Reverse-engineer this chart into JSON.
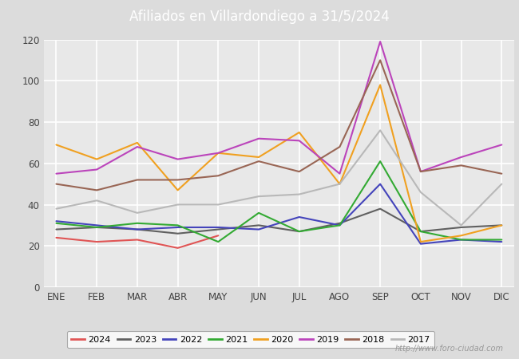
{
  "title": "Afiliados en Villardondiego a 31/5/2024",
  "header_bg": "#5b9bd5",
  "background_color": "#dcdcdc",
  "plot_bg": "#e8e8e8",
  "ylim": [
    0,
    120
  ],
  "yticks": [
    0,
    20,
    40,
    60,
    80,
    100,
    120
  ],
  "months": [
    "ENE",
    "FEB",
    "MAR",
    "ABR",
    "MAY",
    "JUN",
    "JUL",
    "AGO",
    "SEP",
    "OCT",
    "NOV",
    "DIC"
  ],
  "series": {
    "2024": {
      "color": "#e05555",
      "data": [
        24,
        22,
        23,
        19,
        25,
        null,
        null,
        null,
        null,
        null,
        null,
        null
      ]
    },
    "2023": {
      "color": "#606060",
      "data": [
        28,
        29,
        28,
        26,
        28,
        30,
        27,
        31,
        38,
        27,
        29,
        30
      ]
    },
    "2022": {
      "color": "#4444bb",
      "data": [
        32,
        30,
        28,
        29,
        29,
        28,
        34,
        30,
        50,
        21,
        23,
        22
      ]
    },
    "2021": {
      "color": "#33aa33",
      "data": [
        31,
        29,
        31,
        30,
        22,
        36,
        27,
        30,
        61,
        27,
        23,
        23
      ]
    },
    "2020": {
      "color": "#f0a020",
      "data": [
        69,
        62,
        70,
        47,
        65,
        63,
        75,
        50,
        98,
        22,
        25,
        30
      ]
    },
    "2019": {
      "color": "#bb44bb",
      "data": [
        55,
        57,
        68,
        62,
        65,
        72,
        71,
        55,
        119,
        56,
        63,
        69
      ]
    },
    "2018": {
      "color": "#996655",
      "data": [
        50,
        47,
        52,
        52,
        54,
        61,
        56,
        68,
        110,
        56,
        59,
        55
      ]
    },
    "2017": {
      "color": "#b8b8b8",
      "data": [
        38,
        42,
        36,
        40,
        40,
        44,
        45,
        50,
        76,
        46,
        30,
        50
      ]
    }
  },
  "legend_order": [
    "2024",
    "2023",
    "2022",
    "2021",
    "2020",
    "2019",
    "2018",
    "2017"
  ],
  "footer_text": "http://www.foro-ciudad.com"
}
